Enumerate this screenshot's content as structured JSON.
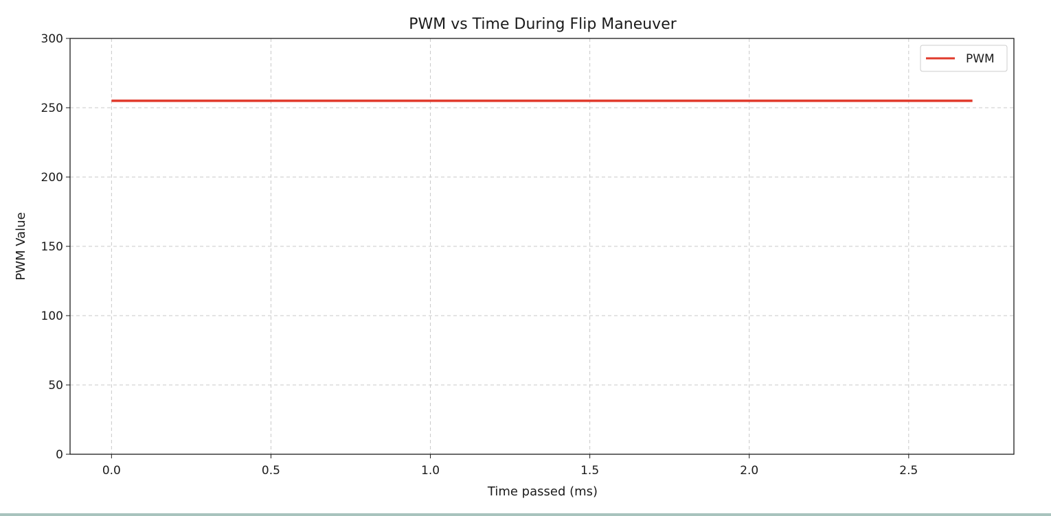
{
  "chart_data": {
    "type": "line",
    "title": "PWM vs Time During Flip Maneuver",
    "xlabel": "Time passed (ms)",
    "ylabel": "PWM Value",
    "xlim": [
      -0.13,
      2.83
    ],
    "ylim": [
      0,
      300
    ],
    "xticks": [
      0.0,
      0.5,
      1.0,
      1.5,
      2.0,
      2.5
    ],
    "xtick_labels": [
      "0.0",
      "0.5",
      "1.0",
      "1.5",
      "2.0",
      "2.5"
    ],
    "yticks": [
      0,
      50,
      100,
      150,
      200,
      250,
      300
    ],
    "ytick_labels": [
      "0",
      "50",
      "100",
      "150",
      "200",
      "250",
      "300"
    ],
    "grid": true,
    "legend_position": "top-right",
    "series": [
      {
        "name": "PWM",
        "color": "#e0392b",
        "x": [
          0.0,
          0.5,
          1.0,
          1.5,
          2.0,
          2.5,
          2.7
        ],
        "y": [
          255,
          255,
          255,
          255,
          255,
          255,
          255
        ]
      }
    ]
  }
}
